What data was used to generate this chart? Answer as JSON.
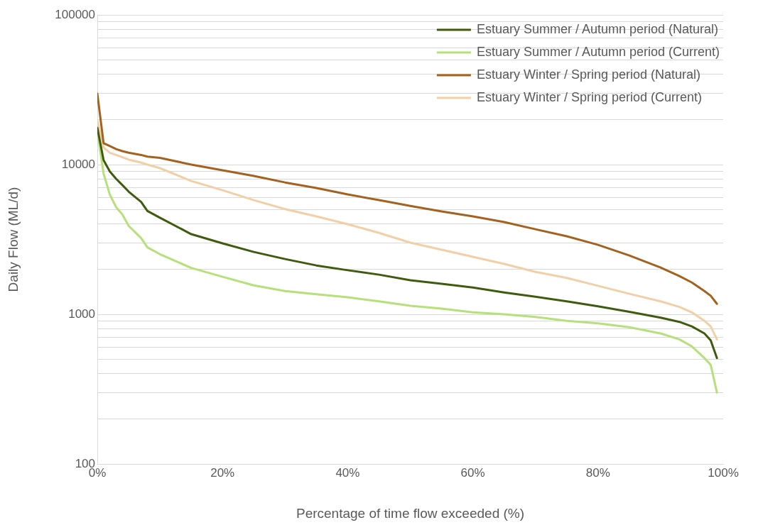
{
  "chart_data": {
    "type": "line",
    "xlabel": "Percentage of time flow exceeded (%)",
    "ylabel": "Daily Flow (ML/d)",
    "log": "y",
    "grid": "y",
    "legend": "top right",
    "marker": "none",
    "line_style": "solid",
    "x": [
      0,
      1,
      2,
      3,
      4,
      5,
      7,
      8,
      10,
      15,
      20,
      25,
      30,
      35,
      40,
      45,
      50,
      55,
      60,
      65,
      70,
      75,
      80,
      85,
      90,
      93,
      95,
      97,
      98,
      99
    ],
    "xlim": [
      0,
      100
    ],
    "xticks": [
      {
        "value": 0,
        "label": "0%"
      },
      {
        "value": 20,
        "label": "20%"
      },
      {
        "value": 40,
        "label": "40%"
      },
      {
        "value": 60,
        "label": "60%"
      },
      {
        "value": 80,
        "label": "80%"
      },
      {
        "value": 100,
        "label": "100%"
      }
    ],
    "ylim": [
      100,
      100000
    ],
    "yticks": [
      100,
      {
        "value": 200,
        "label": null
      },
      {
        "value": 300,
        "label": null
      },
      {
        "value": 400,
        "label": null
      },
      {
        "value": 500,
        "label": null
      },
      {
        "value": 600,
        "label": null
      },
      {
        "value": 700,
        "label": null
      },
      {
        "value": 800,
        "label": null
      },
      {
        "value": 900,
        "label": null
      },
      1000,
      {
        "value": 2000,
        "label": null
      },
      {
        "value": 3000,
        "label": null
      },
      {
        "value": 4000,
        "label": null
      },
      {
        "value": 5000,
        "label": null
      },
      {
        "value": 6000,
        "label": null
      },
      {
        "value": 7000,
        "label": null
      },
      {
        "value": 8000,
        "label": null
      },
      {
        "value": 9000,
        "label": null
      },
      10000,
      {
        "value": 20000,
        "label": null
      },
      {
        "value": 30000,
        "label": null
      },
      {
        "value": 40000,
        "label": null
      },
      {
        "value": 50000,
        "label": null
      },
      {
        "value": 60000,
        "label": null
      },
      {
        "value": 70000,
        "label": null
      },
      {
        "value": 80000,
        "label": null
      },
      {
        "value": 90000,
        "label": null
      },
      100000
    ],
    "series": [
      {
        "name": "Estuary Summer / Autumn period (Natural)",
        "color": "#3f5b0e",
        "values": [
          17600,
          10700,
          9000,
          8040,
          7300,
          6600,
          5630,
          4900,
          4420,
          3430,
          2980,
          2610,
          2340,
          2120,
          1970,
          1840,
          1690,
          1600,
          1510,
          1400,
          1310,
          1220,
          1130,
          1040,
          950,
          890,
          830,
          745,
          670,
          510
        ]
      },
      {
        "name": "Estuary Summer / Autumn period (Current)",
        "color": "#b5e07a",
        "values": [
          16700,
          8700,
          6300,
          5200,
          4650,
          3900,
          3230,
          2800,
          2520,
          2040,
          1780,
          1560,
          1430,
          1360,
          1300,
          1220,
          1140,
          1090,
          1030,
          1000,
          960,
          905,
          870,
          820,
          745,
          680,
          610,
          510,
          460,
          300
        ]
      },
      {
        "name": "Estuary Winter / Spring period (Natural)",
        "color": "#a5621f",
        "values": [
          29800,
          13900,
          13300,
          12700,
          12300,
          12000,
          11600,
          11300,
          11100,
          10000,
          9170,
          8400,
          7600,
          6980,
          6320,
          5790,
          5300,
          4870,
          4510,
          4130,
          3700,
          3320,
          2910,
          2470,
          2050,
          1800,
          1630,
          1430,
          1330,
          1175
        ]
      },
      {
        "name": "Estuary Winter / Spring period (Current)",
        "color": "#f2cfa4",
        "values": [
          19700,
          13000,
          12000,
          11600,
          11200,
          10800,
          10300,
          10000,
          9470,
          7770,
          6740,
          5790,
          5040,
          4510,
          4000,
          3500,
          3010,
          2700,
          2420,
          2170,
          1920,
          1750,
          1550,
          1370,
          1220,
          1120,
          1030,
          905,
          830,
          680
        ]
      }
    ]
  }
}
